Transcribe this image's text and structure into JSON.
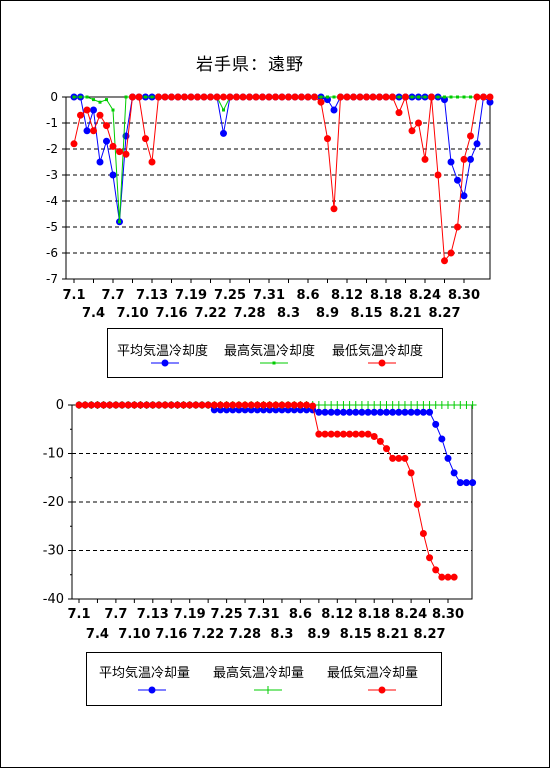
{
  "title": "岩手県：遠野",
  "chart_data": [
    {
      "type": "line",
      "ylim": [
        -7,
        0
      ],
      "yticks": [
        "0",
        "-1",
        "-2",
        "-3",
        "-4",
        "-5",
        "-6",
        "-7"
      ],
      "grid": "dashed-horizontal",
      "x_start": "7.1",
      "xticks_row1": [
        "7.1",
        "7.7",
        "7.13",
        "7.19",
        "7.25",
        "7.31",
        "8.6",
        "8.12",
        "8.18",
        "8.24",
        "8.30"
      ],
      "xticks_row2": [
        "7.4",
        "7.10",
        "7.16",
        "7.22",
        "7.28",
        "8.3",
        "8.9",
        "8.15",
        "8.21",
        "8.27"
      ],
      "legend": "bottom",
      "series": [
        {
          "name": "平均気温冷却度",
          "color": "#0000ff",
          "marker": "circle",
          "values": [
            0,
            0,
            -1.3,
            -0.5,
            -2.5,
            -1.7,
            -3,
            -4.8,
            -1.5,
            0,
            0,
            0,
            0,
            0,
            0,
            0,
            0,
            0,
            0,
            0,
            0,
            0,
            0,
            -1.4,
            0,
            0,
            0,
            0,
            0,
            0,
            0,
            0,
            0,
            0,
            0,
            0,
            0,
            0,
            0,
            -0.1,
            -0.5,
            0,
            0,
            0,
            0,
            0,
            0,
            0,
            0,
            0,
            0,
            0,
            0,
            0,
            0,
            0,
            0,
            -0.1,
            -2.5,
            -3.2,
            -3.8,
            -2.4,
            -1.8,
            0,
            -0.2
          ]
        },
        {
          "name": "最高気温冷却度",
          "color": "#00cc00",
          "marker": "square",
          "values": [
            0,
            0,
            0,
            -0.1,
            -0.2,
            -0.1,
            -0.5,
            -4.8,
            0,
            0,
            0,
            0,
            0,
            0,
            0,
            0,
            0,
            0,
            0,
            0,
            0,
            0,
            0,
            -0.5,
            0,
            0,
            0,
            0,
            0,
            0,
            0,
            0,
            0,
            0,
            0,
            0,
            0,
            0,
            0,
            0,
            0,
            0,
            0,
            0,
            0,
            0,
            0,
            0,
            0,
            0,
            0,
            0,
            0,
            0,
            0,
            0,
            0,
            0,
            0,
            0,
            0,
            0,
            0,
            0,
            0
          ]
        },
        {
          "name": "最低気温冷却度",
          "color": "#ff0000",
          "marker": "circle",
          "values": [
            -1.8,
            -0.7,
            -0.5,
            -1.3,
            -0.7,
            -1.1,
            -1.9,
            -2.1,
            -2.2,
            0,
            0,
            -1.6,
            -2.5,
            0,
            0,
            0,
            0,
            0,
            0,
            0,
            0,
            0,
            0,
            0,
            0,
            0,
            0,
            0,
            0,
            0,
            0,
            0,
            0,
            0,
            0,
            0,
            0,
            0,
            -0.2,
            -1.6,
            -4.3,
            0,
            0,
            0,
            0,
            0,
            0,
            0,
            0,
            0,
            -0.6,
            0,
            -1.3,
            -1,
            -2.4,
            0,
            -3,
            -6.3,
            -6,
            -5,
            -2.4,
            -1.5,
            0,
            0,
            0
          ]
        }
      ]
    },
    {
      "type": "line",
      "ylim": [
        -40,
        0
      ],
      "yticks": [
        "0",
        "-10",
        "-20",
        "-30",
        "-40"
      ],
      "grid": "dashed-horizontal",
      "x_start": "7.1",
      "xticks_row1": [
        "7.1",
        "7.7",
        "7.13",
        "7.19",
        "7.25",
        "7.31",
        "8.6",
        "8.12",
        "8.18",
        "8.24",
        "8.30"
      ],
      "xticks_row2": [
        "7.4",
        "7.10",
        "7.16",
        "7.22",
        "7.28",
        "8.3",
        "8.9",
        "8.15",
        "8.21",
        "8.27"
      ],
      "legend": "bottom",
      "series": [
        {
          "name": "平均気温冷却量",
          "color": "#0000ff",
          "marker": "circle",
          "values": [
            0,
            0,
            0,
            0,
            0,
            0,
            0,
            0,
            0,
            0,
            0,
            0,
            0,
            0,
            0,
            0,
            0,
            0,
            0,
            0,
            0,
            0,
            -1,
            -1,
            -1,
            -1,
            -1,
            -1,
            -1,
            -1,
            -1,
            -1,
            -1,
            -1,
            -1,
            -1,
            -1,
            -1,
            -1,
            -1.5,
            -1.5,
            -1.5,
            -1.5,
            -1.5,
            -1.5,
            -1.5,
            -1.5,
            -1.5,
            -1.5,
            -1.5,
            -1.5,
            -1.5,
            -1.5,
            -1.5,
            -1.5,
            -1.5,
            -1.5,
            -1.5,
            -4,
            -7,
            -11,
            -14,
            -16,
            -16,
            -16
          ]
        },
        {
          "name": "最高気温冷却量",
          "color": "#00cc00",
          "marker": "plus",
          "values": [
            0,
            0,
            0,
            0,
            0,
            0,
            0,
            0,
            0,
            0,
            0,
            0,
            0,
            0,
            0,
            0,
            0,
            0,
            0,
            0,
            0,
            0,
            0,
            0,
            0,
            0,
            0,
            0,
            0,
            0,
            0,
            0,
            0,
            0,
            0,
            0,
            0,
            0,
            0,
            0,
            0,
            0,
            0,
            0,
            0,
            0,
            0,
            0,
            0,
            0,
            0,
            0,
            0,
            0,
            0,
            0,
            0,
            0,
            0,
            0,
            0,
            0,
            0,
            0,
            0
          ]
        },
        {
          "name": "最低気温冷却量",
          "color": "#ff0000",
          "marker": "circle",
          "values": [
            0,
            0,
            0,
            0,
            0,
            0,
            0,
            0,
            0,
            0,
            0,
            0,
            0,
            0,
            0,
            0,
            0,
            0,
            0,
            0,
            0,
            0,
            0,
            0,
            0,
            0,
            0,
            0,
            0,
            0,
            0,
            0,
            0,
            0,
            0,
            0,
            0,
            0,
            -0.2,
            -6,
            -6,
            -6,
            -6,
            -6,
            -6,
            -6,
            -6,
            -6,
            -6.5,
            -7.5,
            -9,
            -11,
            -11,
            -11,
            -14,
            -20.5,
            -26.5,
            -31.5,
            -34,
            -35.5,
            -35.5,
            -35.5,
            null,
            null,
            null
          ]
        }
      ]
    }
  ]
}
